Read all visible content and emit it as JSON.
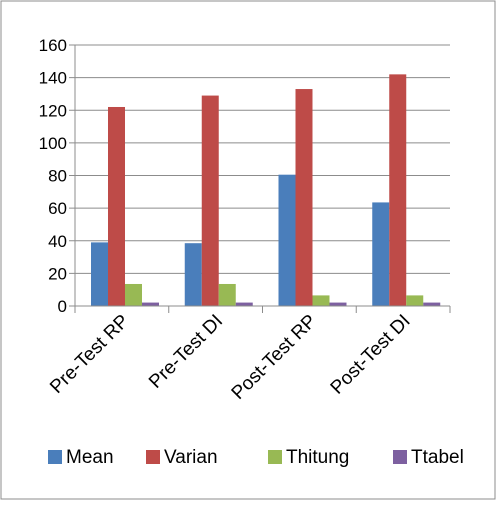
{
  "chart_data": {
    "type": "bar",
    "categories": [
      "Pre-Test RP",
      "Pre-Test DI",
      "Post-Test RP",
      "Post-Test DI"
    ],
    "series": [
      {
        "name": "Mean",
        "color": "#4a7ebb",
        "values": [
          39,
          38.5,
          80.5,
          63.5
        ]
      },
      {
        "name": "Varian",
        "color": "#be4b48",
        "values": [
          122,
          129,
          133,
          142
        ]
      },
      {
        "name": "Thitung",
        "color": "#98b954",
        "values": [
          13.5,
          13.5,
          6.5,
          6.5
        ]
      },
      {
        "name": "Ttabel",
        "color": "#7d60a0",
        "values": [
          2.1,
          2.1,
          2.1,
          2.1
        ]
      }
    ],
    "title": "",
    "xlabel": "",
    "ylabel": "",
    "ylim": [
      0,
      160
    ],
    "yticks": [
      "0",
      "20",
      "40",
      "60",
      "80",
      "100",
      "120",
      "140",
      "160"
    ],
    "grid": true,
    "legend_position": "bottom"
  },
  "colors": {
    "gridline": "#8c8c8c",
    "axis": "#8c8c8c",
    "border": "#8c8c8c"
  }
}
